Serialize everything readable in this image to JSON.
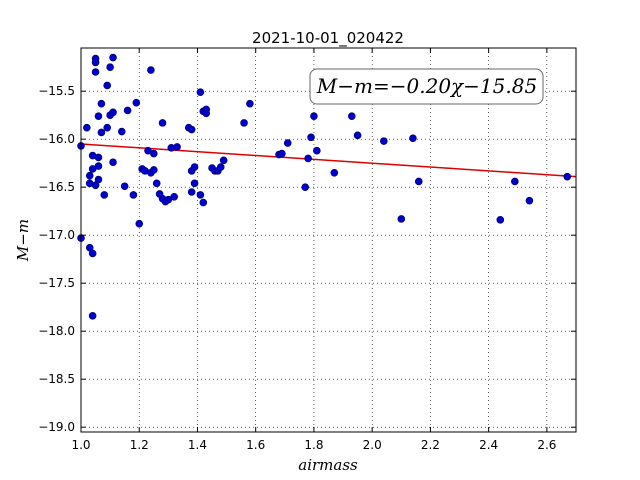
{
  "chart_data": {
    "type": "scatter",
    "title": "2021-10-01_020422",
    "xlabel": "airmass",
    "ylabel": "M−m",
    "xlim": [
      1.0,
      2.7
    ],
    "ylim": [
      -19.05,
      -15.05
    ],
    "xticks": [
      1.0,
      1.2,
      1.4,
      1.6,
      1.8,
      2.0,
      2.2,
      2.4,
      2.6
    ],
    "xtick_labels": [
      "1.0",
      "1.2",
      "1.4",
      "1.6",
      "1.8",
      "2.0",
      "2.2",
      "2.4",
      "2.6"
    ],
    "yticks": [
      -15.5,
      -16.0,
      -16.5,
      -17.0,
      -17.5,
      -18.0,
      -18.5,
      -19.0
    ],
    "ytick_labels": [
      "−15.5",
      "−16.0",
      "−16.5",
      "−17.0",
      "−17.5",
      "−18.0",
      "−18.5",
      "−19.0"
    ],
    "grid": true,
    "point_color": "#0000cc",
    "fit_color": "#dd0000",
    "annotation": "M−m=−0.20χ−15.85",
    "annotation_position": "top-right",
    "fit": {
      "slope": -0.2,
      "intercept": -15.85
    },
    "points": [
      [
        1.0,
        -16.07
      ],
      [
        1.0,
        -17.03
      ],
      [
        1.02,
        -15.88
      ],
      [
        1.03,
        -16.46
      ],
      [
        1.03,
        -16.38
      ],
      [
        1.03,
        -17.13
      ],
      [
        1.04,
        -17.19
      ],
      [
        1.04,
        -17.84
      ],
      [
        1.04,
        -16.31
      ],
      [
        1.04,
        -16.17
      ],
      [
        1.05,
        -15.16
      ],
      [
        1.05,
        -15.2
      ],
      [
        1.05,
        -15.3
      ],
      [
        1.05,
        -16.48
      ],
      [
        1.06,
        -15.76
      ],
      [
        1.06,
        -16.19
      ],
      [
        1.06,
        -16.42
      ],
      [
        1.06,
        -16.28
      ],
      [
        1.07,
        -15.63
      ],
      [
        1.07,
        -15.93
      ],
      [
        1.08,
        -16.58
      ],
      [
        1.09,
        -15.88
      ],
      [
        1.09,
        -15.44
      ],
      [
        1.1,
        -15.75
      ],
      [
        1.1,
        -15.25
      ],
      [
        1.11,
        -15.15
      ],
      [
        1.11,
        -15.72
      ],
      [
        1.11,
        -16.24
      ],
      [
        1.14,
        -15.92
      ],
      [
        1.15,
        -16.49
      ],
      [
        1.16,
        -15.7
      ],
      [
        1.18,
        -16.58
      ],
      [
        1.19,
        -15.62
      ],
      [
        1.2,
        -16.88
      ],
      [
        1.21,
        -16.31
      ],
      [
        1.22,
        -16.33
      ],
      [
        1.23,
        -16.12
      ],
      [
        1.24,
        -15.28
      ],
      [
        1.24,
        -16.35
      ],
      [
        1.25,
        -16.15
      ],
      [
        1.25,
        -16.32
      ],
      [
        1.26,
        -16.46
      ],
      [
        1.27,
        -16.57
      ],
      [
        1.28,
        -15.83
      ],
      [
        1.28,
        -16.62
      ],
      [
        1.29,
        -16.65
      ],
      [
        1.3,
        -16.63
      ],
      [
        1.31,
        -16.09
      ],
      [
        1.32,
        -16.6
      ],
      [
        1.33,
        -16.08
      ],
      [
        1.37,
        -15.88
      ],
      [
        1.38,
        -15.9
      ],
      [
        1.38,
        -16.33
      ],
      [
        1.38,
        -16.55
      ],
      [
        1.39,
        -16.46
      ],
      [
        1.39,
        -16.29
      ],
      [
        1.41,
        -15.51
      ],
      [
        1.41,
        -16.58
      ],
      [
        1.42,
        -15.71
      ],
      [
        1.42,
        -16.66
      ],
      [
        1.43,
        -15.69
      ],
      [
        1.43,
        -15.73
      ],
      [
        1.45,
        -16.3
      ],
      [
        1.46,
        -16.33
      ],
      [
        1.47,
        -16.33
      ],
      [
        1.48,
        -16.29
      ],
      [
        1.49,
        -16.22
      ],
      [
        1.56,
        -15.83
      ],
      [
        1.58,
        -15.63
      ],
      [
        1.68,
        -16.16
      ],
      [
        1.69,
        -16.15
      ],
      [
        1.71,
        -16.04
      ],
      [
        1.77,
        -16.5
      ],
      [
        1.78,
        -16.2
      ],
      [
        1.79,
        -15.98
      ],
      [
        1.8,
        -15.76
      ],
      [
        1.81,
        -16.12
      ],
      [
        1.87,
        -16.35
      ],
      [
        1.93,
        -15.76
      ],
      [
        1.95,
        -15.96
      ],
      [
        2.04,
        -16.02
      ],
      [
        2.1,
        -16.83
      ],
      [
        2.14,
        -15.99
      ],
      [
        2.16,
        -16.44
      ],
      [
        2.44,
        -16.84
      ],
      [
        2.49,
        -16.44
      ],
      [
        2.54,
        -16.64
      ],
      [
        2.67,
        -16.39
      ]
    ]
  }
}
